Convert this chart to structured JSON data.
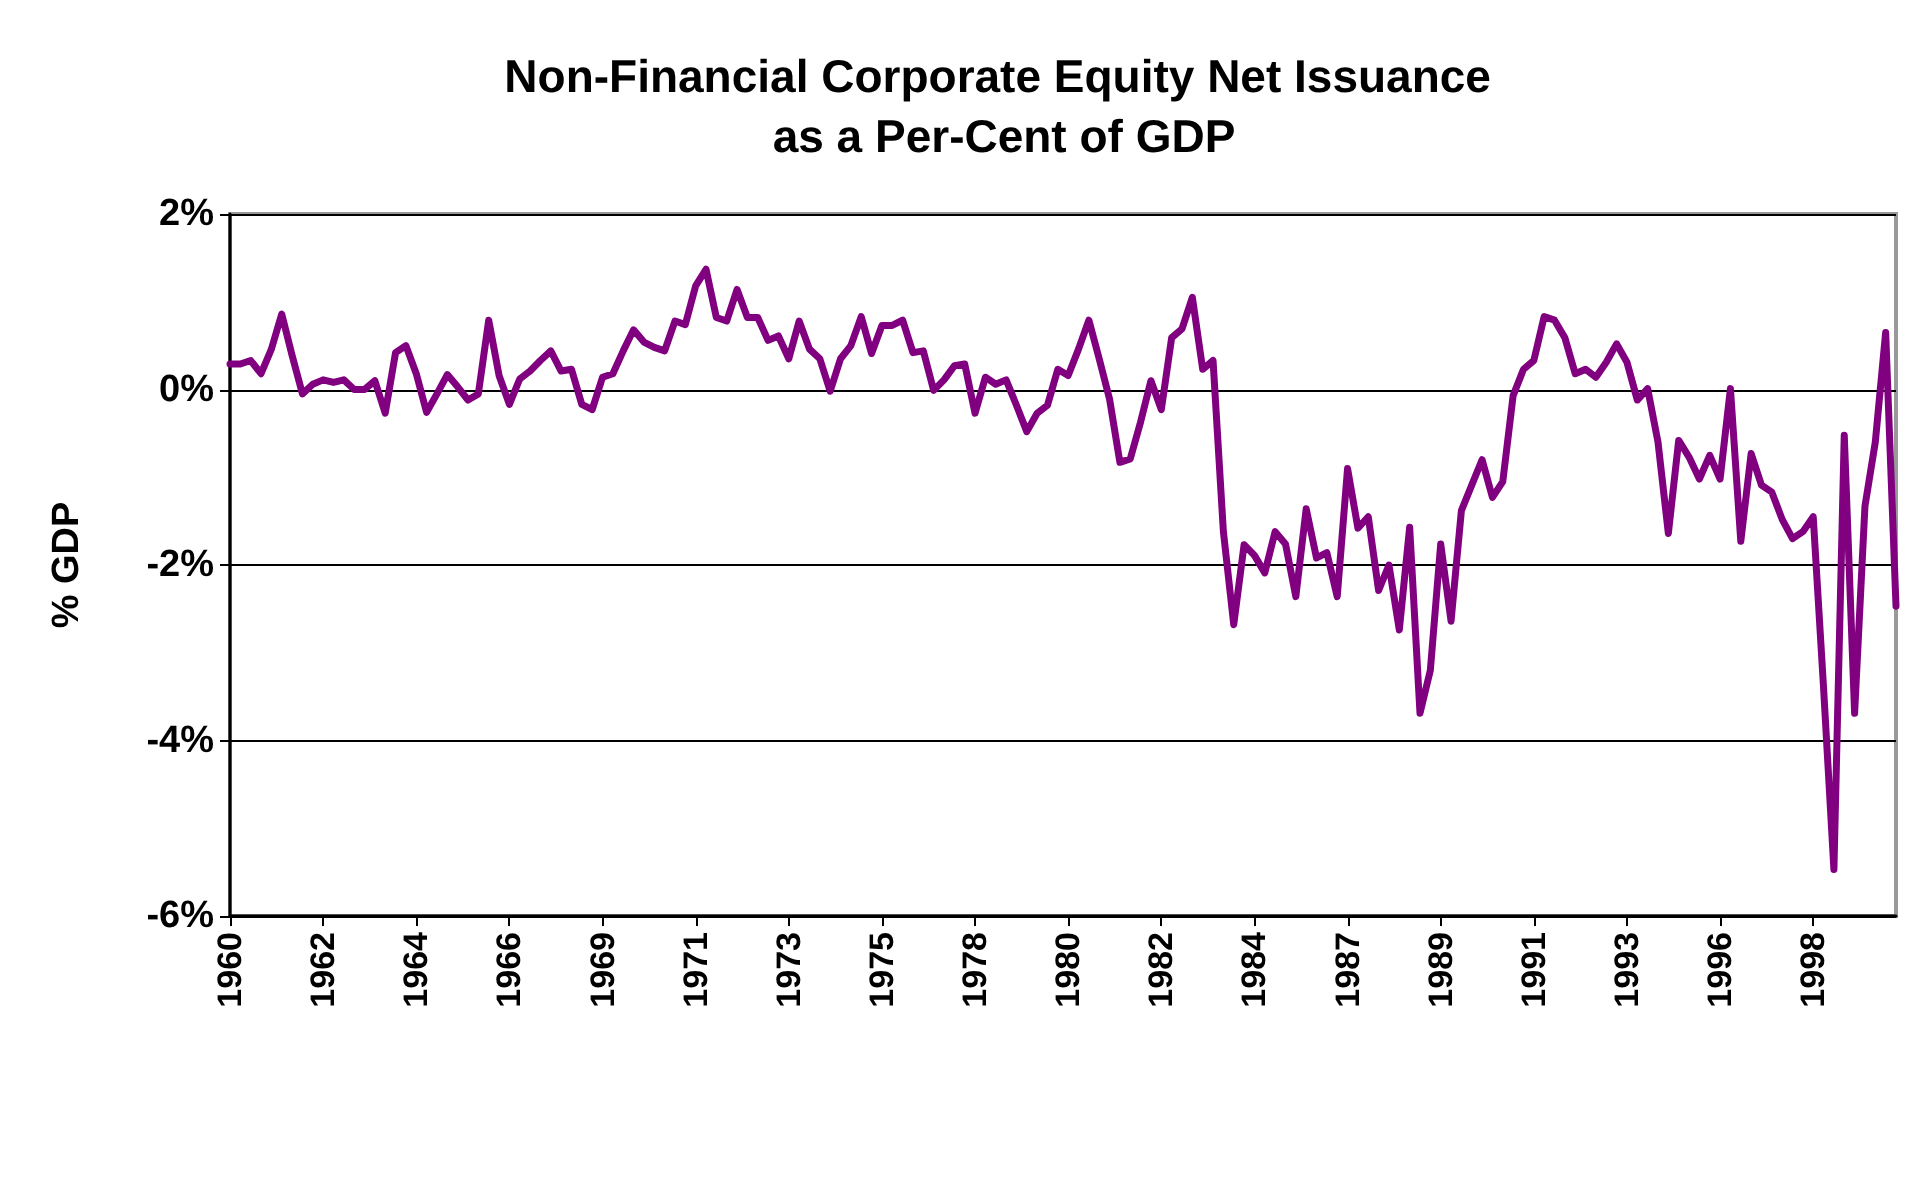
{
  "chart_data": {
    "type": "line",
    "title": "Non-Financial Corporate Equity Net Issuance as a Per-Cent of GDP",
    "ylabel": "% GDP",
    "categories": [
      "1960",
      null,
      null,
      null,
      null,
      null,
      null,
      null,
      null,
      "1962",
      null,
      null,
      null,
      null,
      null,
      null,
      null,
      null,
      "1964",
      null,
      null,
      null,
      null,
      null,
      null,
      null,
      null,
      "1966",
      null,
      null,
      null,
      null,
      null,
      null,
      null,
      null,
      "1969",
      null,
      null,
      null,
      null,
      null,
      null,
      null,
      null,
      "1971",
      null,
      null,
      null,
      null,
      null,
      null,
      null,
      null,
      "1973",
      null,
      null,
      null,
      null,
      null,
      null,
      null,
      null,
      "1975",
      null,
      null,
      null,
      null,
      null,
      null,
      null,
      null,
      "1978",
      null,
      null,
      null,
      null,
      null,
      null,
      null,
      null,
      "1980",
      null,
      null,
      null,
      null,
      null,
      null,
      null,
      null,
      "1982",
      null,
      null,
      null,
      null,
      null,
      null,
      null,
      null,
      "1984",
      null,
      null,
      null,
      null,
      null,
      null,
      null,
      null,
      "1987",
      null,
      null,
      null,
      null,
      null,
      null,
      null,
      null,
      "1989",
      null,
      null,
      null,
      null,
      null,
      null,
      null,
      null,
      "1991",
      null,
      null,
      null,
      null,
      null,
      null,
      null,
      null,
      "1993",
      null,
      null,
      null,
      null,
      null,
      null,
      null,
      null,
      "1996",
      null,
      null,
      null,
      null,
      null,
      null,
      null,
      null,
      "1998",
      null,
      null,
      null,
      null,
      null,
      null,
      null,
      null
    ],
    "series": [
      {
        "color": "#800080",
        "values": [
          0.29,
          0.29,
          0.33,
          0.18,
          0.46,
          0.86,
          0.39,
          -0.05,
          0.06,
          0.11,
          0.08,
          0.11,
          0,
          0,
          0.1,
          -0.27,
          0.42,
          0.5,
          0.18,
          -0.26,
          -0.05,
          0.17,
          0.03,
          -0.12,
          -0.05,
          0.79,
          0.16,
          -0.17,
          0.12,
          0.21,
          0.33,
          0.44,
          0.21,
          0.23,
          -0.17,
          -0.23,
          0.14,
          0.18,
          0.44,
          0.68,
          0.54,
          0.48,
          0.44,
          0.78,
          0.74,
          1.18,
          1.37,
          0.82,
          0.78,
          1.14,
          0.82,
          0.82,
          0.56,
          0.61,
          0.35,
          0.78,
          0.46,
          0.35,
          -0.02,
          0.35,
          0.5,
          0.83,
          0.41,
          0.73,
          0.73,
          0.79,
          0.42,
          0.44,
          -0.01,
          0.11,
          0.27,
          0.29,
          -0.27,
          0.14,
          0.06,
          0.11,
          -0.18,
          -0.48,
          -0.27,
          -0.18,
          0.23,
          0.16,
          0.46,
          0.79,
          0.35,
          -0.11,
          -0.83,
          -0.79,
          -0.37,
          0.1,
          -0.23,
          0.59,
          0.69,
          1.05,
          0.23,
          0.33,
          -1.62,
          -2.68,
          -1.77,
          -1.89,
          -2.09,
          -1.62,
          -1.76,
          -2.36,
          -1.36,
          -1.92,
          -1.86,
          -2.36,
          -0.9,
          -1.58,
          -1.45,
          -2.29,
          -2.0,
          -2.74,
          -1.57,
          -3.69,
          -3.2,
          -1.76,
          -2.64,
          -1.38,
          -1.09,
          -0.8,
          -1.23,
          -1.05,
          -0.07,
          0.23,
          0.33,
          0.83,
          0.79,
          0.59,
          0.18,
          0.23,
          0.14,
          0.31,
          0.52,
          0.31,
          -0.12,
          0.01,
          -0.6,
          -1.64,
          -0.58,
          -0.77,
          -1.02,
          -0.75,
          -1.02,
          0.01,
          -1.73,
          -0.73,
          -1.09,
          -1.17,
          -1.48,
          -1.7,
          -1.62,
          -1.45,
          -3.4,
          -5.47,
          -0.52,
          -3.69,
          -1.33,
          -0.6,
          0.65,
          -2.47
        ]
      }
    ],
    "ylim": [
      -6,
      2
    ],
    "yticks": [
      {
        "value": -6,
        "label": "-6%"
      },
      {
        "value": -4,
        "label": "-4%"
      },
      {
        "value": -2,
        "label": "-2%"
      },
      {
        "value": 0,
        "label": "0%"
      },
      {
        "value": 2,
        "label": "2%"
      }
    ],
    "grid": "y",
    "marker": "none",
    "line_style": "solid"
  }
}
